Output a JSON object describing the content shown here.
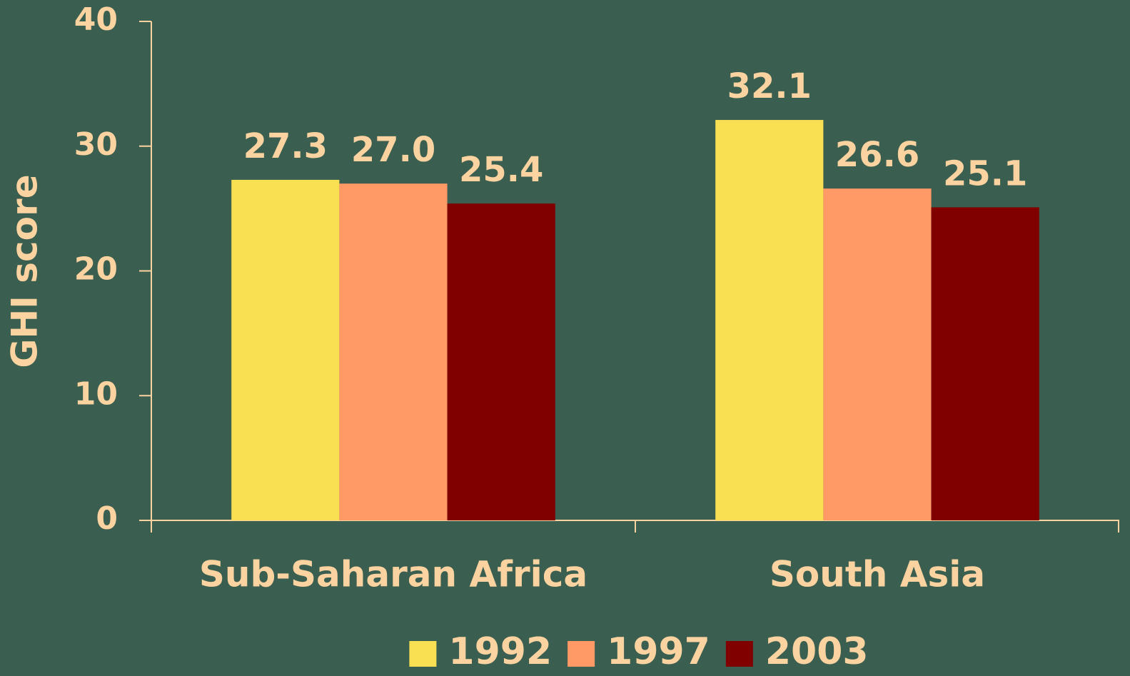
{
  "chart_data": {
    "type": "bar",
    "y_label": "GHI score",
    "categories": [
      "Sub-Saharan Africa",
      "South Asia"
    ],
    "series": [
      {
        "name": "1992",
        "color": "#f9df52",
        "values": [
          27.3,
          32.1
        ],
        "value_labels": [
          "27.3",
          "32.1"
        ]
      },
      {
        "name": "1997",
        "color": "#ff9966",
        "values": [
          27.0,
          26.6
        ],
        "value_labels": [
          "27.0",
          "26.6"
        ]
      },
      {
        "name": "2003",
        "color": "#800000",
        "values": [
          25.4,
          25.1
        ],
        "value_labels": [
          "25.4",
          "25.1"
        ]
      }
    ],
    "ylim": [
      0,
      40
    ],
    "yticks": [
      0,
      10,
      20,
      30,
      40
    ],
    "grid": false,
    "legend": "bottom"
  }
}
